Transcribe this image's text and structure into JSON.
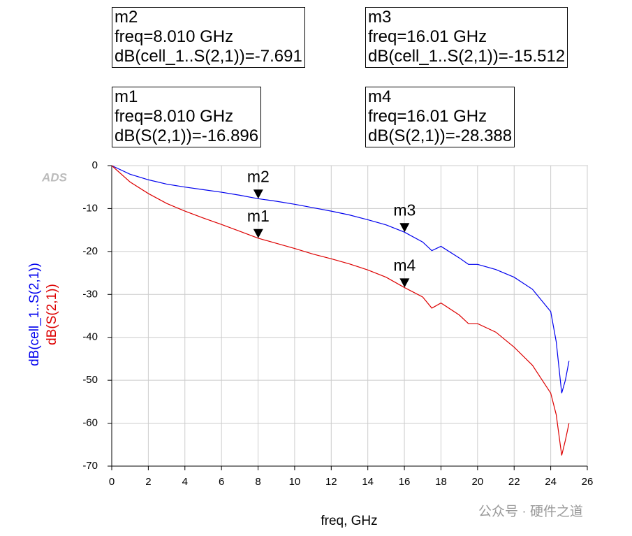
{
  "chart_data": {
    "type": "line",
    "logo": "ADS",
    "x_label": "freq, GHz",
    "watermark": "公众号 · 硬件之道",
    "xlim": [
      0,
      26
    ],
    "xticks": [
      0,
      2,
      4,
      6,
      8,
      10,
      12,
      14,
      16,
      18,
      20,
      22,
      24,
      26
    ],
    "ylim": [
      -70,
      0
    ],
    "yticks": [
      0,
      -10,
      -20,
      -30,
      -40,
      -50,
      -60,
      -70
    ],
    "grid": true,
    "x": [
      0,
      1,
      2,
      3,
      4,
      5,
      6,
      7,
      8,
      9,
      10,
      11,
      12,
      13,
      14,
      15,
      16,
      17,
      17.5,
      18,
      19,
      19.5,
      20,
      21,
      22,
      23,
      24,
      24.3,
      24.6,
      24.8,
      25
    ],
    "series": [
      {
        "name": "dB(cell_1..S(2,1))",
        "color": "#0000ee",
        "values": [
          0,
          -2,
          -3.3,
          -4.3,
          -5.0,
          -5.6,
          -6.2,
          -6.9,
          -7.7,
          -8.3,
          -9,
          -9.8,
          -10.6,
          -11.5,
          -12.6,
          -13.8,
          -15.5,
          -17.8,
          -19.8,
          -18.8,
          -21.5,
          -23,
          -23,
          -24.2,
          -26,
          -28.8,
          -34,
          -41,
          -53,
          -50,
          -45.5
        ]
      },
      {
        "name": "dB(S(2,1))",
        "color": "#dd0000",
        "values": [
          0,
          -3.8,
          -6.5,
          -8.8,
          -10.6,
          -12.2,
          -13.7,
          -15.3,
          -16.9,
          -18.1,
          -19.3,
          -20.6,
          -21.7,
          -22.9,
          -24.3,
          -26,
          -28.4,
          -30.6,
          -33.2,
          -32,
          -34.8,
          -36.8,
          -36.8,
          -38.8,
          -42.3,
          -46.5,
          -53,
          -58,
          -67.5,
          -64,
          -60
        ]
      }
    ],
    "markers": [
      {
        "name": "m2",
        "x": 8.01,
        "y": -7.691,
        "lines": [
          "freq=8.010 GHz",
          "dB(cell_1..S(2,1))=-7.691"
        ]
      },
      {
        "name": "m3",
        "x": 16.01,
        "y": -15.512,
        "lines": [
          "freq=16.01 GHz",
          "dB(cell_1..S(2,1))=-15.512"
        ]
      },
      {
        "name": "m1",
        "x": 8.01,
        "y": -16.896,
        "lines": [
          "freq=8.010 GHz",
          "dB(S(2,1))=-16.896"
        ]
      },
      {
        "name": "m4",
        "x": 16.01,
        "y": -28.388,
        "lines": [
          "freq=16.01 GHz",
          "dB(S(2,1))=-28.388"
        ]
      }
    ]
  }
}
